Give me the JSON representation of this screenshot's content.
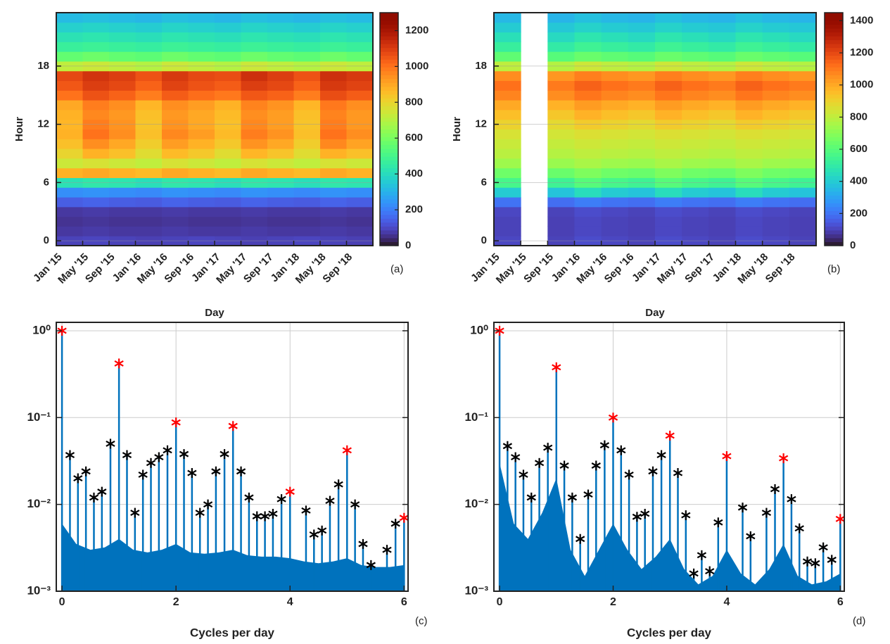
{
  "chart_data": [
    {
      "type": "heatmap",
      "panel_label": "(a)",
      "x_label": "Day",
      "y_label": "Hour",
      "categories": [
        "Jan '15",
        "May '15",
        "Sep '15",
        "Jan '16",
        "May '16",
        "Sep '16",
        "Jan '17",
        "May '17",
        "Sep '17",
        "Jan '18",
        "May '18",
        "Sep '18"
      ],
      "ylim": [
        -0.5,
        23.5
      ],
      "yticks": [
        0,
        6,
        12,
        18
      ],
      "grid": true,
      "zlim": [
        0,
        1300
      ],
      "zticks": [
        0,
        200,
        400,
        600,
        800,
        1000,
        1200
      ],
      "colormap": "turbo",
      "values": [
        [
          90,
          95,
          90,
          85,
          90,
          95,
          90,
          85,
          90,
          95,
          90,
          85
        ],
        [
          70,
          75,
          70,
          70,
          75,
          70,
          70,
          75,
          70,
          70,
          75,
          70
        ],
        [
          60,
          65,
          60,
          60,
          65,
          60,
          60,
          65,
          60,
          60,
          65,
          60
        ],
        [
          70,
          75,
          70,
          70,
          75,
          70,
          70,
          75,
          70,
          70,
          75,
          70
        ],
        [
          140,
          150,
          140,
          135,
          150,
          140,
          135,
          150,
          140,
          135,
          150,
          140
        ],
        [
          230,
          240,
          230,
          220,
          240,
          230,
          220,
          240,
          230,
          220,
          240,
          230
        ],
        [
          420,
          440,
          430,
          410,
          440,
          430,
          410,
          440,
          430,
          410,
          440,
          430
        ],
        [
          880,
          900,
          880,
          860,
          900,
          880,
          860,
          900,
          880,
          860,
          900,
          880
        ],
        [
          740,
          760,
          740,
          720,
          760,
          740,
          720,
          760,
          740,
          720,
          760,
          740
        ],
        [
          800,
          880,
          850,
          780,
          860,
          830,
          780,
          870,
          840,
          780,
          880,
          850
        ],
        [
          850,
          950,
          900,
          820,
          920,
          880,
          830,
          940,
          900,
          820,
          960,
          910
        ],
        [
          880,
          1000,
          950,
          850,
          960,
          920,
          860,
          980,
          940,
          850,
          1000,
          950
        ],
        [
          870,
          980,
          940,
          840,
          940,
          900,
          850,
          960,
          920,
          840,
          980,
          930
        ],
        [
          880,
          960,
          930,
          850,
          930,
          900,
          860,
          950,
          920,
          850,
          970,
          930
        ],
        [
          900,
          980,
          950,
          870,
          950,
          920,
          880,
          970,
          940,
          870,
          990,
          950
        ],
        [
          1000,
          1060,
          1030,
          980,
          1040,
          1010,
          990,
          1050,
          1030,
          980,
          1070,
          1040
        ],
        [
          1050,
          1100,
          1080,
          1030,
          1090,
          1060,
          1040,
          1100,
          1080,
          1030,
          1110,
          1090
        ],
        [
          1080,
          1120,
          1100,
          1060,
          1110,
          1080,
          1070,
          1130,
          1100,
          1060,
          1130,
          1110
        ],
        [
          720,
          740,
          720,
          700,
          740,
          720,
          700,
          740,
          720,
          700,
          740,
          720
        ],
        [
          560,
          580,
          560,
          550,
          580,
          560,
          550,
          580,
          560,
          550,
          580,
          560
        ],
        [
          470,
          480,
          470,
          460,
          480,
          470,
          460,
          480,
          470,
          460,
          480,
          470
        ],
        [
          420,
          430,
          420,
          410,
          430,
          420,
          410,
          430,
          420,
          410,
          430,
          420
        ],
        [
          370,
          380,
          370,
          360,
          380,
          370,
          360,
          380,
          370,
          360,
          380,
          370
        ],
        [
          320,
          330,
          320,
          310,
          330,
          320,
          310,
          330,
          320,
          310,
          330,
          320
        ]
      ]
    },
    {
      "type": "heatmap",
      "panel_label": "(b)",
      "x_label": "Day",
      "y_label": "Hour",
      "categories": [
        "Jan '15",
        "May '15",
        "Sep '15",
        "Jan '16",
        "May '16",
        "Sep '16",
        "Jan '17",
        "May '17",
        "Sep '17",
        "Jan '18",
        "May '18",
        "Sep '18"
      ],
      "ylim": [
        -0.5,
        23.5
      ],
      "yticks": [
        0,
        6,
        12,
        18
      ],
      "grid": true,
      "zlim": [
        0,
        1450
      ],
      "zticks": [
        0,
        200,
        400,
        600,
        800,
        1000,
        1200,
        1400
      ],
      "colormap": "turbo",
      "values": [
        [
          110,
          null,
          100,
          120,
          110,
          100,
          120,
          110,
          100,
          120,
          110,
          100
        ],
        [
          100,
          null,
          95,
          110,
          100,
          95,
          110,
          100,
          95,
          110,
          100,
          95
        ],
        [
          100,
          null,
          95,
          110,
          100,
          95,
          110,
          100,
          95,
          110,
          100,
          95
        ],
        [
          110,
          null,
          100,
          120,
          110,
          100,
          120,
          110,
          100,
          120,
          110,
          100
        ],
        [
          200,
          null,
          190,
          220,
          200,
          190,
          220,
          200,
          190,
          220,
          200,
          190
        ],
        [
          400,
          null,
          380,
          450,
          400,
          380,
          450,
          400,
          380,
          450,
          400,
          380
        ],
        [
          560,
          null,
          540,
          600,
          560,
          540,
          600,
          560,
          540,
          600,
          560,
          540
        ],
        [
          650,
          null,
          640,
          680,
          650,
          640,
          680,
          650,
          640,
          680,
          650,
          640
        ],
        [
          740,
          null,
          730,
          760,
          740,
          730,
          760,
          740,
          730,
          760,
          740,
          730
        ],
        [
          790,
          null,
          780,
          800,
          790,
          780,
          800,
          790,
          780,
          800,
          790,
          780
        ],
        [
          820,
          null,
          810,
          830,
          820,
          810,
          830,
          820,
          810,
          830,
          820,
          810
        ],
        [
          850,
          null,
          840,
          860,
          850,
          840,
          860,
          850,
          840,
          860,
          850,
          840
        ],
        [
          900,
          null,
          880,
          920,
          900,
          880,
          920,
          900,
          880,
          920,
          900,
          880
        ],
        [
          950,
          null,
          930,
          980,
          950,
          930,
          980,
          950,
          930,
          980,
          950,
          930
        ],
        [
          1000,
          null,
          980,
          1030,
          1000,
          980,
          1030,
          1000,
          980,
          1030,
          1000,
          980
        ],
        [
          1080,
          null,
          1060,
          1110,
          1080,
          1060,
          1110,
          1080,
          1060,
          1110,
          1080,
          1060
        ],
        [
          1120,
          null,
          1100,
          1150,
          1120,
          1100,
          1150,
          1120,
          1100,
          1150,
          1120,
          1100
        ],
        [
          1060,
          null,
          1040,
          1090,
          1060,
          1040,
          1090,
          1060,
          1040,
          1090,
          1060,
          1040
        ],
        [
          800,
          null,
          780,
          830,
          800,
          780,
          830,
          800,
          780,
          830,
          800,
          780
        ],
        [
          620,
          null,
          600,
          640,
          620,
          600,
          640,
          620,
          600,
          640,
          620,
          600
        ],
        [
          520,
          null,
          500,
          540,
          520,
          500,
          540,
          520,
          500,
          540,
          520,
          500
        ],
        [
          460,
          null,
          440,
          480,
          460,
          440,
          480,
          460,
          440,
          480,
          460,
          440
        ],
        [
          400,
          null,
          390,
          420,
          400,
          390,
          420,
          400,
          390,
          420,
          400,
          390
        ],
        [
          350,
          null,
          340,
          370,
          350,
          340,
          370,
          350,
          340,
          370,
          350,
          340
        ]
      ]
    },
    {
      "type": "stem",
      "panel_label": "(c)",
      "x_label": "Cycles per day",
      "log_scale": true,
      "grid": true,
      "xlim": [
        -0.1,
        6.07
      ],
      "xticks": [
        0,
        2,
        4,
        6
      ],
      "ylim": [
        0.001,
        1.25
      ],
      "yticks": [
        {
          "value": 0.001,
          "label": "10⁻³"
        },
        {
          "value": 0.01,
          "label": "10⁻²"
        },
        {
          "value": 0.1,
          "label": "10⁻¹"
        },
        {
          "value": 1,
          "label": "10⁰"
        }
      ],
      "stem_color": "#0072bd",
      "floor": {
        "x": [
          0,
          0.25,
          0.5,
          0.75,
          1,
          1.25,
          1.5,
          1.75,
          2,
          2.25,
          2.5,
          2.75,
          3,
          3.25,
          3.5,
          3.75,
          4,
          4.25,
          4.5,
          4.75,
          5,
          5.25,
          5.5,
          5.75,
          6
        ],
        "values": [
          0.006,
          0.0035,
          0.003,
          0.0032,
          0.004,
          0.003,
          0.0028,
          0.003,
          0.0035,
          0.0028,
          0.0027,
          0.0028,
          0.003,
          0.0026,
          0.0025,
          0.0025,
          0.0024,
          0.0022,
          0.0021,
          0.0022,
          0.0024,
          0.002,
          0.0019,
          0.0019,
          0.002
        ]
      },
      "series": [
        {
          "color": "#ff0000",
          "x": [
            0,
            1,
            2,
            3,
            4,
            5,
            6
          ],
          "values": [
            1,
            0.42,
            0.088,
            0.08,
            0.014,
            0.042,
            0.007
          ]
        },
        {
          "color": "#000000",
          "x": [
            0.14,
            0.28,
            0.42,
            0.56,
            0.7,
            0.85,
            1.14,
            1.28,
            1.42,
            1.56,
            1.7,
            1.85,
            2.14,
            2.28,
            2.42,
            2.56,
            2.7,
            2.85,
            3.14,
            3.28,
            3.42,
            3.56,
            3.7,
            3.85,
            4.28,
            4.42,
            4.56,
            4.7,
            4.85,
            5.14,
            5.28,
            5.42,
            5.7,
            5.85
          ],
          "values": [
            0.037,
            0.02,
            0.024,
            0.012,
            0.014,
            0.05,
            0.037,
            0.008,
            0.022,
            0.03,
            0.035,
            0.042,
            0.038,
            0.023,
            0.008,
            0.01,
            0.024,
            0.038,
            0.024,
            0.012,
            0.0073,
            0.0073,
            0.0078,
            0.0115,
            0.0085,
            0.0045,
            0.005,
            0.011,
            0.017,
            0.01,
            0.0035,
            0.002,
            0.003,
            0.006
          ]
        }
      ]
    },
    {
      "type": "stem",
      "panel_label": "(d)",
      "x_label": "Cycles per day",
      "log_scale": true,
      "grid": true,
      "xlim": [
        -0.1,
        6.07
      ],
      "xticks": [
        0,
        2,
        4,
        6
      ],
      "ylim": [
        0.001,
        1.25
      ],
      "yticks": [
        {
          "value": 0.001,
          "label": "10⁻³"
        },
        {
          "value": 0.01,
          "label": "10⁻²"
        },
        {
          "value": 0.1,
          "label": "10⁻¹"
        },
        {
          "value": 1,
          "label": "10⁰"
        }
      ],
      "stem_color": "#0072bd",
      "floor": {
        "x": [
          0,
          0.25,
          0.5,
          0.75,
          1,
          1.25,
          1.5,
          1.75,
          2,
          2.25,
          2.5,
          2.75,
          3,
          3.25,
          3.5,
          3.75,
          4,
          4.25,
          4.5,
          4.75,
          5,
          5.25,
          5.5,
          5.75,
          6
        ],
        "values": [
          0.03,
          0.006,
          0.004,
          0.008,
          0.02,
          0.003,
          0.0015,
          0.003,
          0.006,
          0.003,
          0.0018,
          0.0025,
          0.004,
          0.0018,
          0.0012,
          0.0015,
          0.003,
          0.0016,
          0.0012,
          0.0018,
          0.0035,
          0.0015,
          0.0012,
          0.0013,
          0.0016
        ]
      },
      "series": [
        {
          "color": "#ff0000",
          "x": [
            0,
            1,
            2,
            3,
            4,
            5,
            6
          ],
          "values": [
            1,
            0.38,
            0.1,
            0.062,
            0.036,
            0.034,
            0.0068
          ]
        },
        {
          "color": "#000000",
          "x": [
            0.14,
            0.28,
            0.42,
            0.56,
            0.7,
            0.85,
            1.14,
            1.28,
            1.42,
            1.56,
            1.7,
            1.85,
            2.14,
            2.28,
            2.42,
            2.56,
            2.7,
            2.85,
            3.14,
            3.28,
            3.42,
            3.56,
            3.7,
            3.85,
            4.28,
            4.42,
            4.7,
            4.85,
            5.14,
            5.28,
            5.42,
            5.56,
            5.7,
            5.85
          ],
          "values": [
            0.047,
            0.035,
            0.022,
            0.012,
            0.03,
            0.045,
            0.028,
            0.012,
            0.004,
            0.013,
            0.028,
            0.048,
            0.042,
            0.022,
            0.0072,
            0.0078,
            0.024,
            0.037,
            0.023,
            0.0075,
            0.0016,
            0.0026,
            0.0017,
            0.0062,
            0.0092,
            0.0043,
            0.008,
            0.015,
            0.0115,
            0.0053,
            0.0022,
            0.0021,
            0.0032,
            0.0023
          ]
        }
      ]
    }
  ]
}
